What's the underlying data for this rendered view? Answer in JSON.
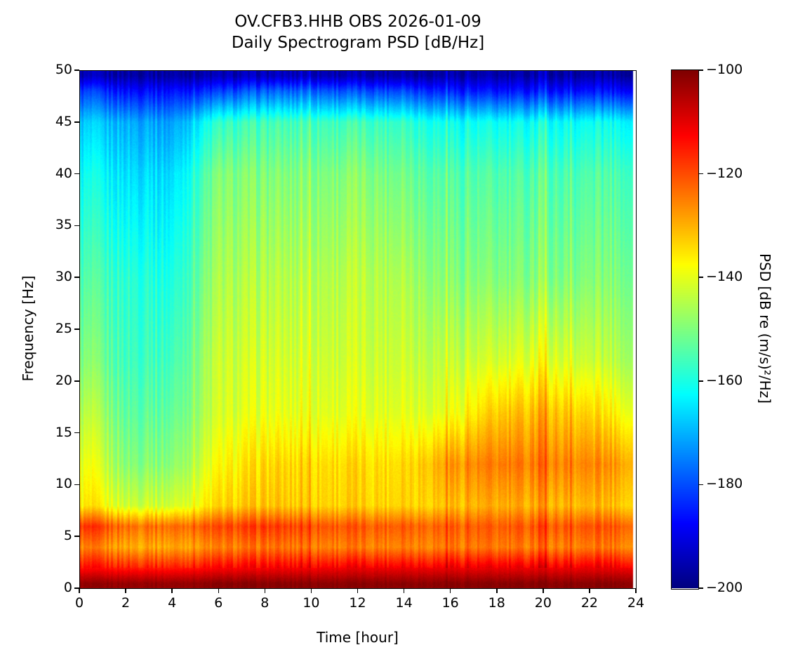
{
  "chart_data": {
    "type": "heatmap",
    "title_line1": "OV.CFB3.HHB OBS 2026-01-09",
    "title_line2": "Daily Spectrogram PSD [dB/Hz]",
    "xlabel": "Time [hour]",
    "ylabel": "Frequency [Hz]",
    "colorbar_label": "PSD [dB re (m/s)²/Hz]",
    "colormap": "jet",
    "xlim": [
      0,
      24
    ],
    "ylim": [
      0,
      50
    ],
    "clim": [
      -200,
      -100
    ],
    "data_time_end": 23.85,
    "xticks": [
      0,
      2,
      4,
      6,
      8,
      10,
      12,
      14,
      16,
      18,
      20,
      22,
      24
    ],
    "yticks": [
      0,
      5,
      10,
      15,
      20,
      25,
      30,
      35,
      40,
      45,
      50
    ],
    "cticks": [
      -200,
      -180,
      -160,
      -140,
      -120,
      -100
    ],
    "time_hours": [
      0.5,
      2,
      4,
      6,
      8,
      10,
      12,
      14,
      16,
      18,
      20,
      22,
      23.5
    ],
    "freq_hz": [
      0.5,
      2,
      4,
      6,
      8,
      12,
      17,
      22,
      30,
      40,
      45,
      48,
      49.5
    ],
    "psd_db": [
      [
        -102,
        -102,
        -102,
        -101,
        -101,
        -101,
        -101,
        -101,
        -101,
        -101,
        -101,
        -101,
        -101
      ],
      [
        -114,
        -115,
        -115,
        -113,
        -112,
        -112,
        -111,
        -111,
        -111,
        -111,
        -111,
        -111,
        -111
      ],
      [
        -126,
        -129,
        -129,
        -126,
        -124,
        -125,
        -125,
        -125,
        -125,
        -125,
        -125,
        -125,
        -125
      ],
      [
        -118,
        -123,
        -123,
        -120,
        -118,
        -120,
        -121,
        -121,
        -122,
        -122,
        -121,
        -121,
        -121
      ],
      [
        -136,
        -142,
        -142,
        -134,
        -132,
        -133,
        -133,
        -133,
        -132,
        -130,
        -130,
        -131,
        -132
      ],
      [
        -140,
        -149,
        -149,
        -138,
        -134,
        -134,
        -134,
        -134,
        -128,
        -125,
        -125,
        -126,
        -128
      ],
      [
        -145,
        -153,
        -153,
        -142,
        -140,
        -140,
        -140,
        -140,
        -140,
        -133,
        -131,
        -134,
        -138
      ],
      [
        -150,
        -156,
        -156,
        -143,
        -142,
        -142,
        -142,
        -142,
        -144,
        -142,
        -140,
        -143,
        -145
      ],
      [
        -155,
        -158,
        -160,
        -146,
        -145,
        -145,
        -144,
        -145,
        -150,
        -150,
        -150,
        -150,
        -150
      ],
      [
        -162,
        -165,
        -166,
        -150,
        -150,
        -150,
        -149,
        -151,
        -155,
        -155,
        -155,
        -155,
        -155
      ],
      [
        -168,
        -170,
        -172,
        -158,
        -156,
        -156,
        -156,
        -157,
        -162,
        -162,
        -162,
        -162,
        -162
      ],
      [
        -182,
        -186,
        -186,
        -182,
        -178,
        -178,
        -180,
        -180,
        -185,
        -186,
        -186,
        -186,
        -186
      ],
      [
        -195,
        -196,
        -196,
        -195,
        -194,
        -194,
        -195,
        -195,
        -196,
        -196,
        -196,
        -196,
        -196
      ]
    ]
  }
}
